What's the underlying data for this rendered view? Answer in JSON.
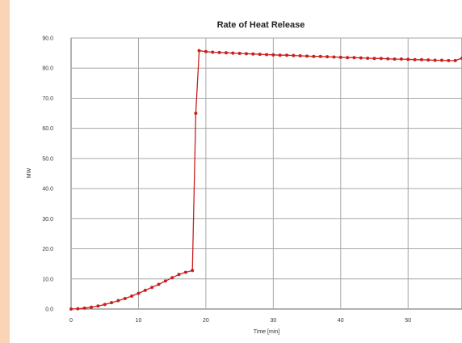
{
  "colors": {
    "side_band": "#f9d5b6",
    "series": "#c8201e",
    "grid": "#a6a6a6",
    "axis": "#666666"
  },
  "chart_data": {
    "type": "line",
    "title": "Rate of Heat Release",
    "xlabel": "Time [min]",
    "ylabel": "MW",
    "xlim": [
      0,
      58
    ],
    "ylim": [
      0,
      90
    ],
    "grid": true,
    "legend": "none",
    "x_ticks": [
      "0",
      "10",
      "20",
      "30",
      "40",
      "50"
    ],
    "y_ticks": [
      "0.0",
      "10.0",
      "20.0",
      "30.0",
      "40.0",
      "50.0",
      "60.0",
      "70.0",
      "80.0",
      "90.0"
    ],
    "series": [
      {
        "x": [
          0,
          1,
          2,
          3,
          4,
          5,
          6,
          7,
          8,
          9,
          10,
          11,
          12,
          13,
          14,
          15,
          16,
          17,
          18,
          18.5,
          19,
          20,
          21,
          22,
          23,
          24,
          25,
          26,
          27,
          28,
          29,
          30,
          31,
          32,
          33,
          34,
          35,
          36,
          37,
          38,
          39,
          40,
          41,
          42,
          43,
          44,
          45,
          46,
          47,
          48,
          49,
          50,
          51,
          52,
          53,
          54,
          55,
          56,
          57,
          58
        ],
        "y": [
          0,
          0.1,
          0.3,
          0.6,
          1,
          1.5,
          2.1,
          2.8,
          3.5,
          4.3,
          5.2,
          6.2,
          7.2,
          8.2,
          9.3,
          10.4,
          11.5,
          12.2,
          12.8,
          65,
          85.8,
          85.5,
          85.3,
          85.2,
          85.1,
          85,
          84.9,
          84.8,
          84.7,
          84.6,
          84.5,
          84.4,
          84.3,
          84.3,
          84.2,
          84.1,
          84,
          83.9,
          83.9,
          83.8,
          83.7,
          83.6,
          83.5,
          83.5,
          83.4,
          83.3,
          83.2,
          83.2,
          83.1,
          83,
          83,
          82.9,
          82.8,
          82.8,
          82.7,
          82.6,
          82.6,
          82.5,
          82.5,
          83.3
        ]
      }
    ]
  }
}
